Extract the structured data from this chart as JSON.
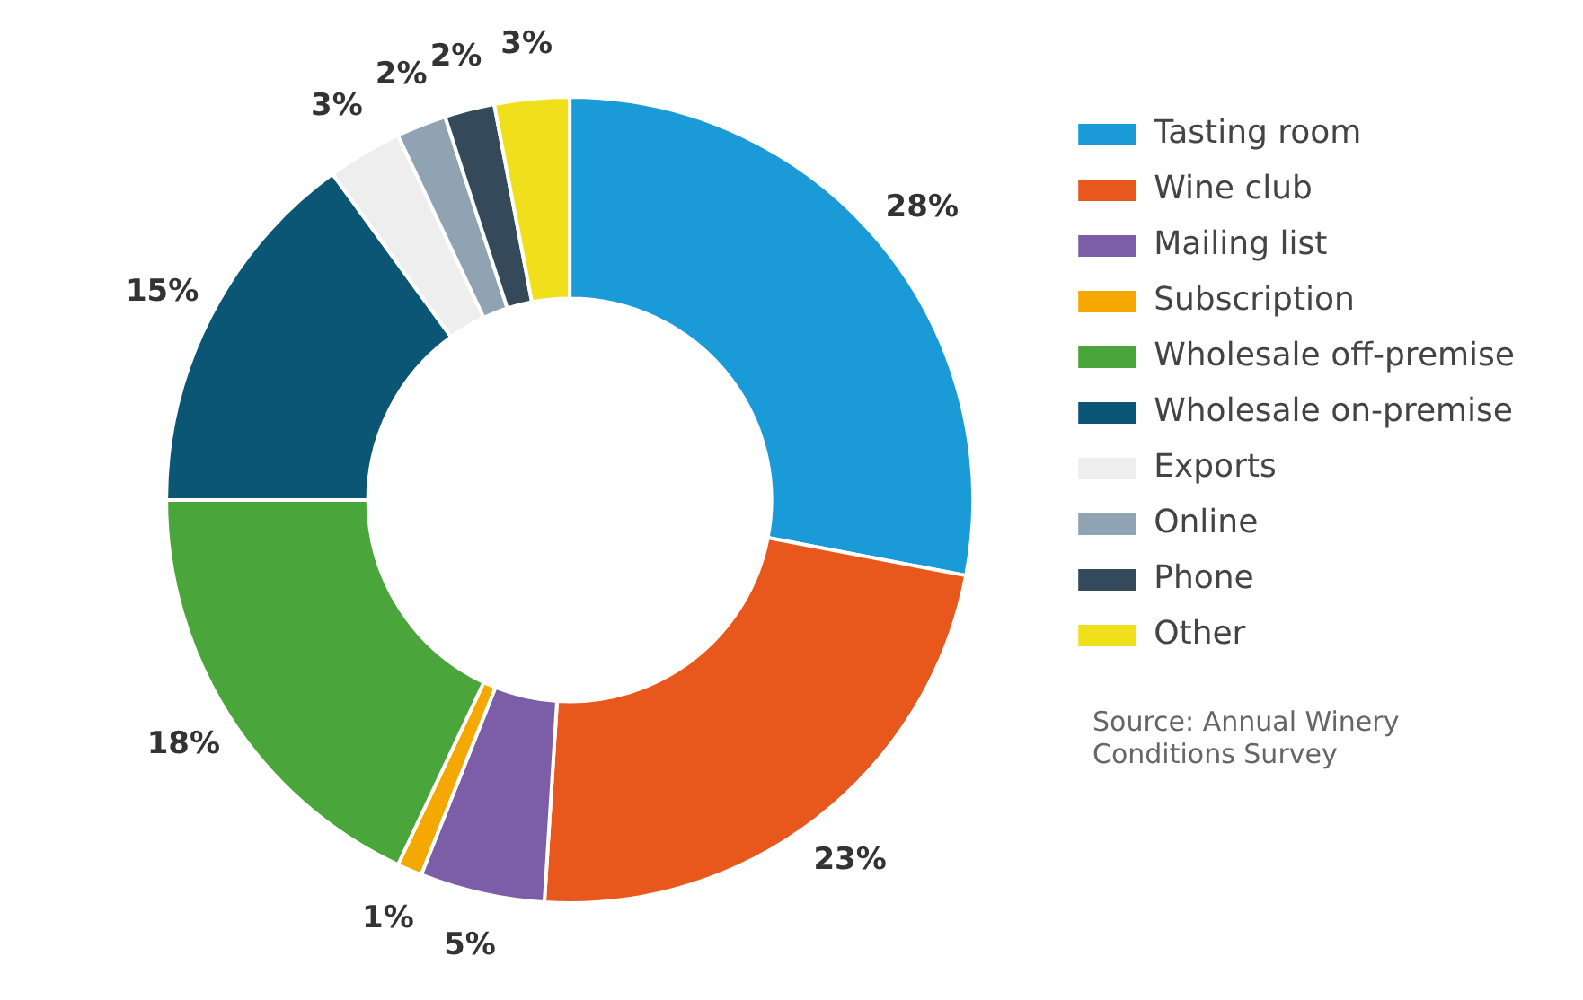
{
  "chart_data": {
    "type": "donut",
    "categories": [
      "Tasting room",
      "Wine club",
      "Mailing list",
      "Subscription",
      "Wholesale off-premise",
      "Wholesale on-premise",
      "Exports",
      "Online",
      "Phone",
      "Other"
    ],
    "values": [
      28,
      23,
      5,
      1,
      18,
      15,
      3,
      2,
      2,
      3
    ],
    "value_labels": [
      "28%",
      "23%",
      "5%",
      "1%",
      "18%",
      "15%",
      "3%",
      "2%",
      "2%",
      "3%"
    ],
    "colors": [
      "#1a9ad6",
      "#e8581c",
      "#7b5ea7",
      "#f5a800",
      "#4aa53a",
      "#0b5575",
      "#eeeeee",
      "#8fa3b3",
      "#34495a",
      "#f0e01c"
    ],
    "legend": "right",
    "annotations": [
      "Source: Annual Winery Conditions Survey"
    ]
  }
}
